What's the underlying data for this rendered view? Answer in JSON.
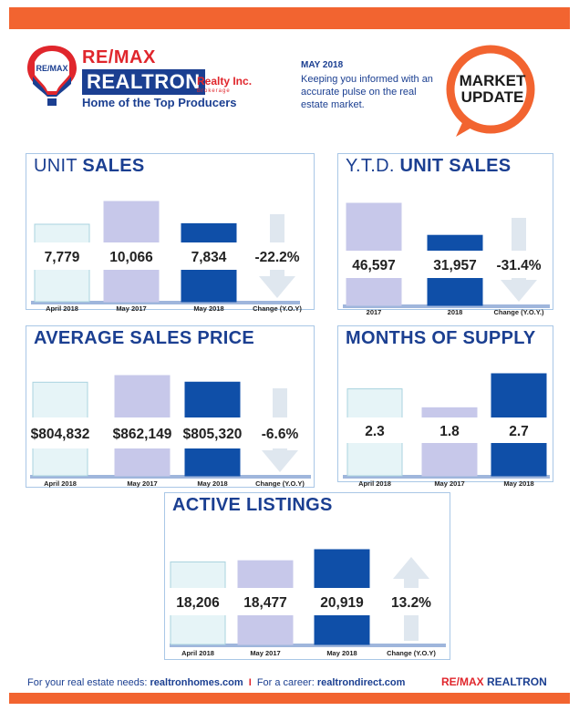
{
  "header": {
    "brand_remax": "RE/MAX",
    "brand_realtron": "REALTRON",
    "brand_realty": "Realty Inc.",
    "brand_brokerage": "Brokerage",
    "tagline": "Home of the Top Producers",
    "balloon_text": "RE/MAX",
    "month": "MAY 2018",
    "description": "Keeping you informed with an accurate pulse on the real estate market.",
    "badge_line1": "MARKET",
    "badge_line2": "UPDATE"
  },
  "colors": {
    "orange": "#f26430",
    "navy": "#1b3f91",
    "red": "#e0262c",
    "bar_light": "#e6f4f7",
    "bar_mid": "#c7c8ea",
    "bar_dark": "#0f4fa8",
    "arrow": "#dfe7ef",
    "panel_border": "#a9c7e6"
  },
  "chart_data": [
    {
      "id": "unit-sales",
      "type": "bar",
      "title_light": "UNIT",
      "title_bold": "SALES",
      "categories": [
        "April 2018",
        "May 2017",
        "May 2018"
      ],
      "values": [
        7779,
        10066,
        7834
      ],
      "labels": [
        "7,779",
        "10,066",
        "7,834"
      ],
      "change_label": "Change (Y.O.Y)",
      "change": -22.2,
      "change_text": "-22.2%"
    },
    {
      "id": "ytd-unit-sales",
      "type": "bar",
      "title_light": "Y.T.D.",
      "title_bold": "UNIT SALES",
      "categories": [
        "2017",
        "2018"
      ],
      "values": [
        46597,
        31957
      ],
      "labels": [
        "46,597",
        "31,957"
      ],
      "change_label": "Change (Y.O.Y.)",
      "change": -31.4,
      "change_text": "-31.4%"
    },
    {
      "id": "average-sales-price",
      "type": "bar",
      "title_light": "",
      "title_bold": "AVERAGE SALES PRICE",
      "categories": [
        "April 2018",
        "May 2017",
        "May 2018"
      ],
      "values": [
        804832,
        862149,
        805320
      ],
      "labels": [
        "$804,832",
        "$862,149",
        "$805,320"
      ],
      "change_label": "Change (Y.O.Y)",
      "change": -6.6,
      "change_text": "-6.6%"
    },
    {
      "id": "months-of-supply",
      "type": "bar",
      "title_light": "",
      "title_bold": "MONTHS OF SUPPLY",
      "categories": [
        "April 2018",
        "May 2017",
        "May 2018"
      ],
      "values": [
        2.3,
        1.8,
        2.7
      ],
      "labels": [
        "2.3",
        "1.8",
        "2.7"
      ],
      "change_label": "",
      "change": null,
      "change_text": ""
    },
    {
      "id": "active-listings",
      "type": "bar",
      "title_light": "",
      "title_bold": "ACTIVE LISTINGS",
      "categories": [
        "April 2018",
        "May 2017",
        "May 2018"
      ],
      "values": [
        18206,
        18477,
        20919
      ],
      "labels": [
        "18,206",
        "18,477",
        "20,919"
      ],
      "change_label": "Change (Y.O.Y)",
      "change": 13.2,
      "change_text": "13.2%"
    }
  ],
  "footer": {
    "prefix": "For your real estate needs:",
    "link1": "realtronhomes.com",
    "separator": "I",
    "prefix2": "For a career:",
    "link2": "realtrondirect.com",
    "brand_remax": "RE/MAX",
    "brand_realtron": "REALTRON"
  }
}
